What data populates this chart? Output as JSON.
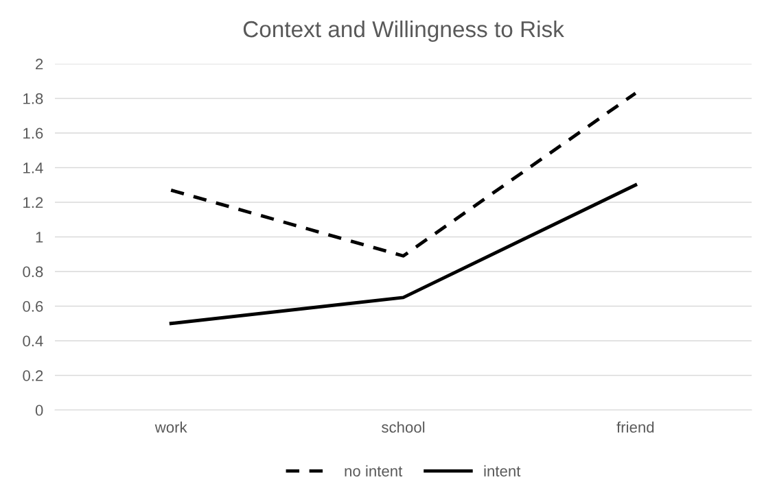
{
  "chart_data": {
    "type": "line",
    "title": "Context and Willingness to Risk",
    "categories": [
      "work",
      "school",
      "friend"
    ],
    "series": [
      {
        "name": "no intent",
        "color": "#000000",
        "line_style": "dashed",
        "values": [
          1.27,
          0.89,
          1.83
        ]
      },
      {
        "name": "intent",
        "color": "#000000",
        "line_style": "solid",
        "values": [
          0.5,
          0.65,
          1.3
        ]
      }
    ],
    "ylim": [
      0,
      2
    ],
    "yticks": [
      0,
      0.2,
      0.4,
      0.6,
      0.8,
      1,
      1.2,
      1.4,
      1.6,
      1.8,
      2
    ],
    "grid": "y",
    "legend": "bottom",
    "marker": "none"
  }
}
